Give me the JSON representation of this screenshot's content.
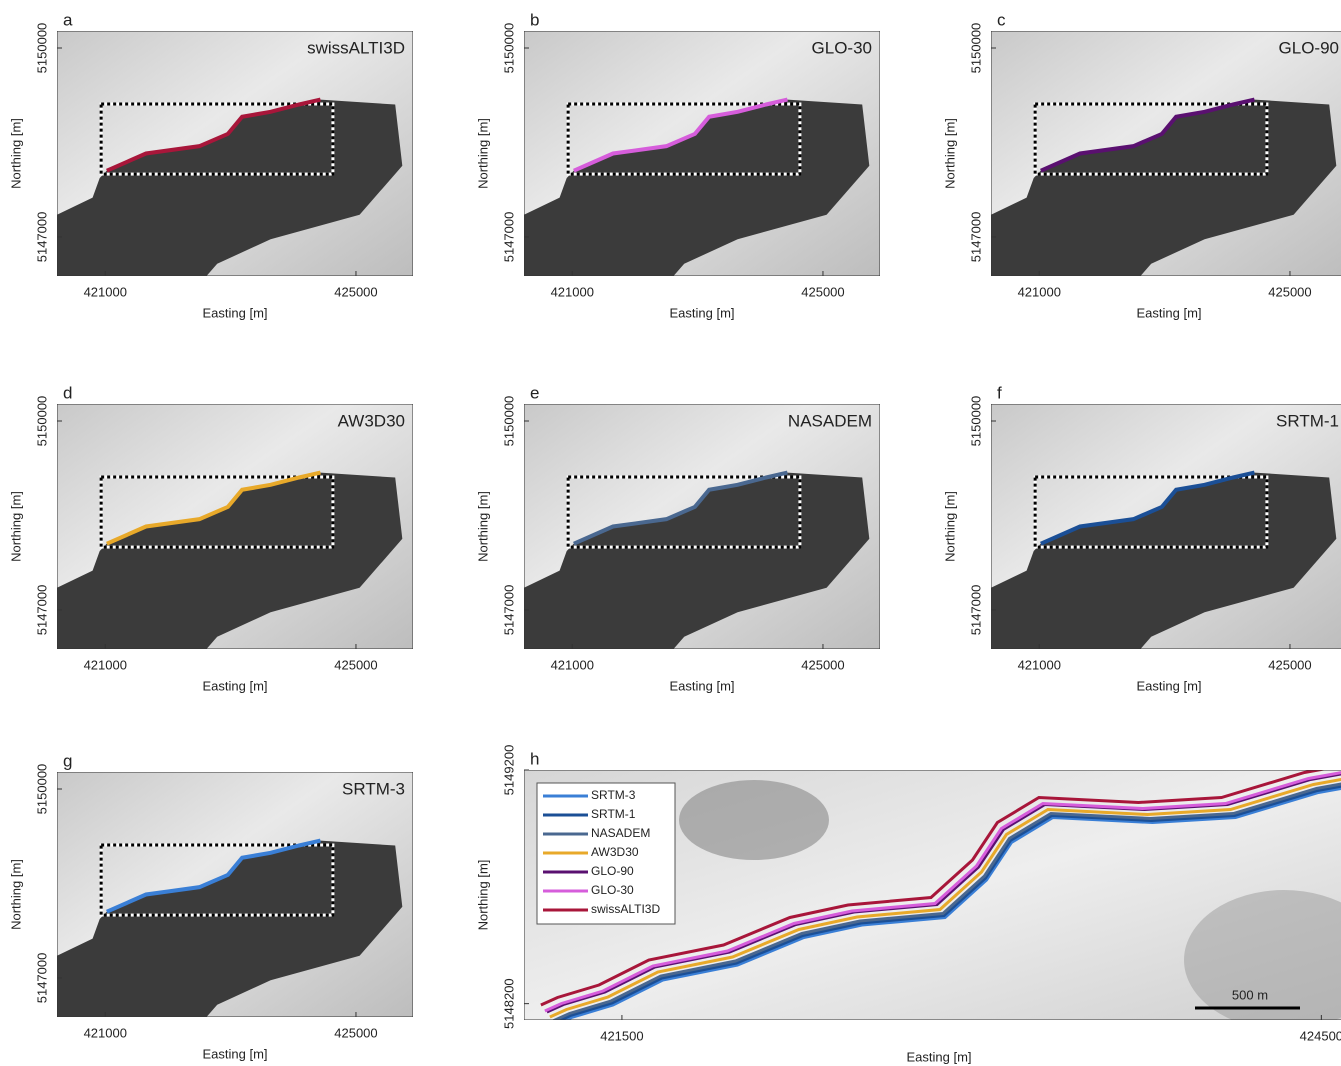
{
  "panels": [
    {
      "letter": "a",
      "title": "swissALTI3D",
      "color": "#a8163a",
      "xlabel": "Easting [m]",
      "ylabel": "Northing [m]",
      "xlim": [
        420230,
        425910
      ],
      "ylim": [
        5146380,
        5150270
      ],
      "xticks": [
        421000,
        425000
      ],
      "yticks": [
        5147000,
        5150000
      ]
    },
    {
      "letter": "b",
      "title": "GLO-30",
      "color": "#d65ddb",
      "xlabel": "Easting [m]",
      "ylabel": "Northing [m]",
      "xlim": [
        420230,
        425910
      ],
      "ylim": [
        5146380,
        5150270
      ],
      "xticks": [
        421000,
        425000
      ],
      "yticks": [
        5147000,
        5150000
      ]
    },
    {
      "letter": "c",
      "title": "GLO-90",
      "color": "#5a1070",
      "xlabel": "Easting [m]",
      "ylabel": "Northing [m]",
      "xlim": [
        420230,
        425910
      ],
      "ylim": [
        5146380,
        5150270
      ],
      "xticks": [
        421000,
        425000
      ],
      "yticks": [
        5147000,
        5150000
      ]
    },
    {
      "letter": "d",
      "title": "AW3D30",
      "color": "#e8a92a",
      "xlabel": "Easting [m]",
      "ylabel": "Northing [m]",
      "xlim": [
        420230,
        425910
      ],
      "ylim": [
        5146380,
        5150270
      ],
      "xticks": [
        421000,
        425000
      ],
      "yticks": [
        5147000,
        5150000
      ]
    },
    {
      "letter": "e",
      "title": "NASADEM",
      "color": "#4a6890",
      "xlabel": "Easting [m]",
      "ylabel": "Northing [m]",
      "xlim": [
        420230,
        425910
      ],
      "ylim": [
        5146380,
        5150270
      ],
      "xticks": [
        421000,
        425000
      ],
      "yticks": [
        5147000,
        5150000
      ]
    },
    {
      "letter": "f",
      "title": "SRTM-1",
      "color": "#1b4f96",
      "xlabel": "Easting [m]",
      "ylabel": "Northing [m]",
      "xlim": [
        420230,
        425910
      ],
      "ylim": [
        5146380,
        5150270
      ],
      "xticks": [
        421000,
        425000
      ],
      "yticks": [
        5147000,
        5150000
      ]
    },
    {
      "letter": "g",
      "title": "SRTM-3",
      "color": "#3a7fd6",
      "xlabel": "Easting [m]",
      "ylabel": "Northing [m]",
      "xlim": [
        420230,
        425910
      ],
      "ylim": [
        5146380,
        5150270
      ],
      "xticks": [
        421000,
        425000
      ],
      "yticks": [
        5147000,
        5150000
      ]
    }
  ],
  "overview": {
    "letter": "h",
    "xlabel": "Easting [m]",
    "ylabel": "Northing [m]",
    "xlim": [
      421080,
      424640
    ],
    "ylim": [
      5148130,
      5149200
    ],
    "xticks": [
      421500,
      424500
    ],
    "yticks": [
      5148200,
      5149200
    ],
    "scale_bar": "500 m",
    "legend": [
      {
        "name": "SRTM-3",
        "color": "#3a7fd6"
      },
      {
        "name": "SRTM-1",
        "color": "#1b4f96"
      },
      {
        "name": "NASADEM",
        "color": "#4a6890"
      },
      {
        "name": "AW3D30",
        "color": "#e8a92a"
      },
      {
        "name": "GLO-90",
        "color": "#5a1070"
      },
      {
        "name": "GLO-30",
        "color": "#d65ddb"
      },
      {
        "name": "swissALTI3D",
        "color": "#a8163a"
      }
    ]
  }
}
